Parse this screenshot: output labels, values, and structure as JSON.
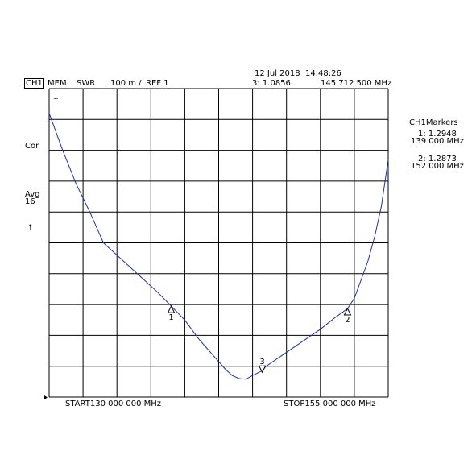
{
  "header": {
    "date_time": "12 Jul 2018  14:48:26",
    "channel": "CH1",
    "mode": "MEM",
    "format": "SWR",
    "scale": "100 m /",
    "ref": "REF 1",
    "active_marker": "3: 1.0856",
    "active_marker_freq": "145 712 500 MHz"
  },
  "side": {
    "cor": "Cor",
    "avg": "Avg",
    "avg_count": "16",
    "hold_mark": "↑"
  },
  "markers_panel": {
    "title": "CH1Markers",
    "m1_value": "1: 1.2948",
    "m1_freq": "139 000 MHz",
    "m2_value": "2: 1.2873",
    "m2_freq": "152 000 MHz"
  },
  "footer": {
    "start": "START130 000 000 MHz",
    "stop": "STOP155 000 000 MHz"
  },
  "chart_data": {
    "type": "line",
    "xlabel": "",
    "ylabel": "",
    "xlim": [
      130,
      155
    ],
    "ylim": [
      1.0,
      2.0
    ],
    "x_divisions": 10,
    "y_divisions": 10,
    "reference_value": 1,
    "scale_per_div": 0.1,
    "grid": true,
    "line_color": "#2030a0",
    "series": [
      {
        "x": [
          130.0,
          131.0,
          132.0,
          133.0,
          134.0,
          135.0,
          136.0,
          137.0,
          138.0,
          139.0,
          140.0,
          141.0,
          142.0,
          143.0,
          143.5,
          144.0,
          144.5,
          145.0,
          145.71,
          146.0,
          147.0,
          148.0,
          149.0,
          150.0,
          151.0,
          152.0,
          152.5,
          153.0,
          153.5,
          154.0,
          154.5,
          155.0
        ],
        "y": [
          1.92,
          1.8,
          1.69,
          1.6,
          1.5,
          1.46,
          1.42,
          1.38,
          1.34,
          1.295,
          1.25,
          1.19,
          1.14,
          1.09,
          1.07,
          1.06,
          1.058,
          1.07,
          1.0856,
          1.1,
          1.13,
          1.16,
          1.19,
          1.22,
          1.255,
          1.287,
          1.32,
          1.38,
          1.44,
          1.52,
          1.62,
          1.77
        ]
      }
    ],
    "markers": [
      {
        "label": "1",
        "x": 139.0,
        "y": 1.2948,
        "direction": "up"
      },
      {
        "label": "2",
        "x": 152.0,
        "y": 1.2873,
        "direction": "up"
      },
      {
        "label": "3",
        "x": 145.7125,
        "y": 1.0856,
        "direction": "down"
      }
    ]
  }
}
